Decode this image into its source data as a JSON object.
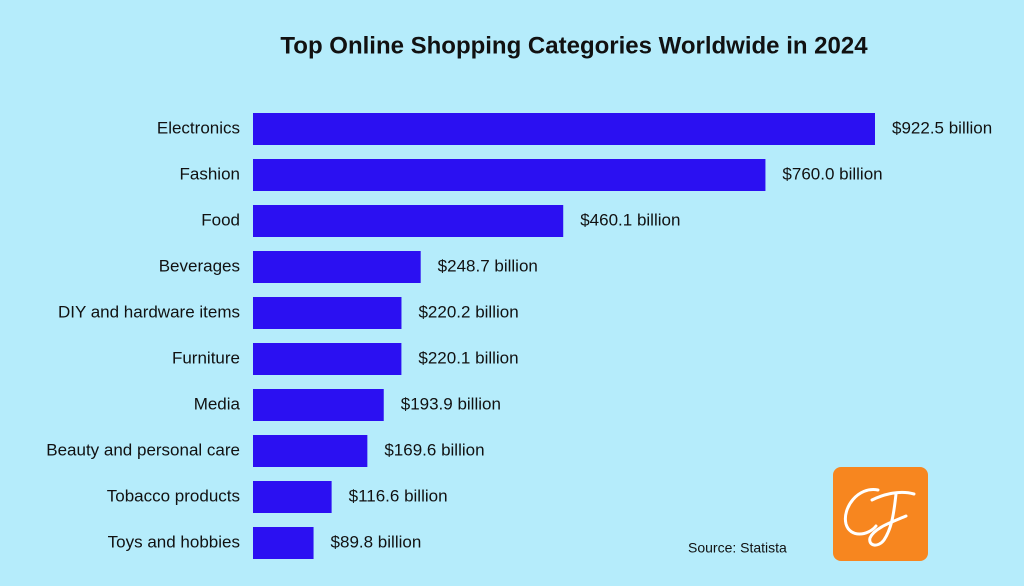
{
  "chart_data": {
    "type": "bar",
    "orientation": "horizontal",
    "title": "Top Online Shopping Categories Worldwide in 2024",
    "categories": [
      "Electronics",
      "Fashion",
      "Food",
      "Beverages",
      "DIY and hardware items",
      "Furniture",
      "Media",
      "Beauty and personal care",
      "Tobacco products",
      "Toys and hobbies"
    ],
    "values": [
      922.5,
      760.0,
      460.1,
      248.7,
      220.2,
      220.1,
      193.9,
      169.6,
      116.6,
      89.8
    ],
    "value_labels": [
      "$922.5 billion",
      "$760.0 billion",
      "$460.1 billion",
      "$248.7 billion",
      "$220.2 billion",
      "$220.1 billion",
      "$193.9 billion",
      "$169.6 billion",
      "$116.6 billion",
      "$89.8 billion"
    ],
    "color": "#2b10f2",
    "source": "Source: Statista"
  }
}
